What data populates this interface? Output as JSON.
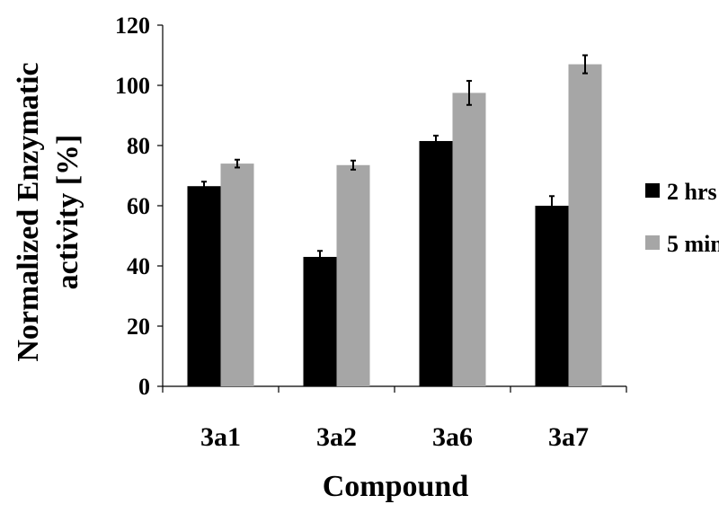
{
  "chart_data": {
    "type": "bar",
    "xlabel": "Compound",
    "ylabel": [
      "Normalized Enzymatic",
      "activity [%]"
    ],
    "categories": [
      "3a1",
      "3a2",
      "3a6",
      "3a7"
    ],
    "ylim": [
      0,
      120
    ],
    "yticks": [
      0,
      20,
      40,
      60,
      80,
      100,
      120
    ],
    "grid": false,
    "legend_position": "right",
    "series": [
      {
        "name": "2 hrs",
        "color": "#000000",
        "values": [
          66.5,
          43.0,
          81.5,
          60.0
        ],
        "errors": [
          1.5,
          2.0,
          1.8,
          3.2
        ]
      },
      {
        "name": "5 min",
        "color": "#a6a6a6",
        "values": [
          74.0,
          73.5,
          97.5,
          107.0
        ],
        "errors": [
          1.3,
          1.5,
          4.0,
          3.0
        ]
      }
    ]
  }
}
